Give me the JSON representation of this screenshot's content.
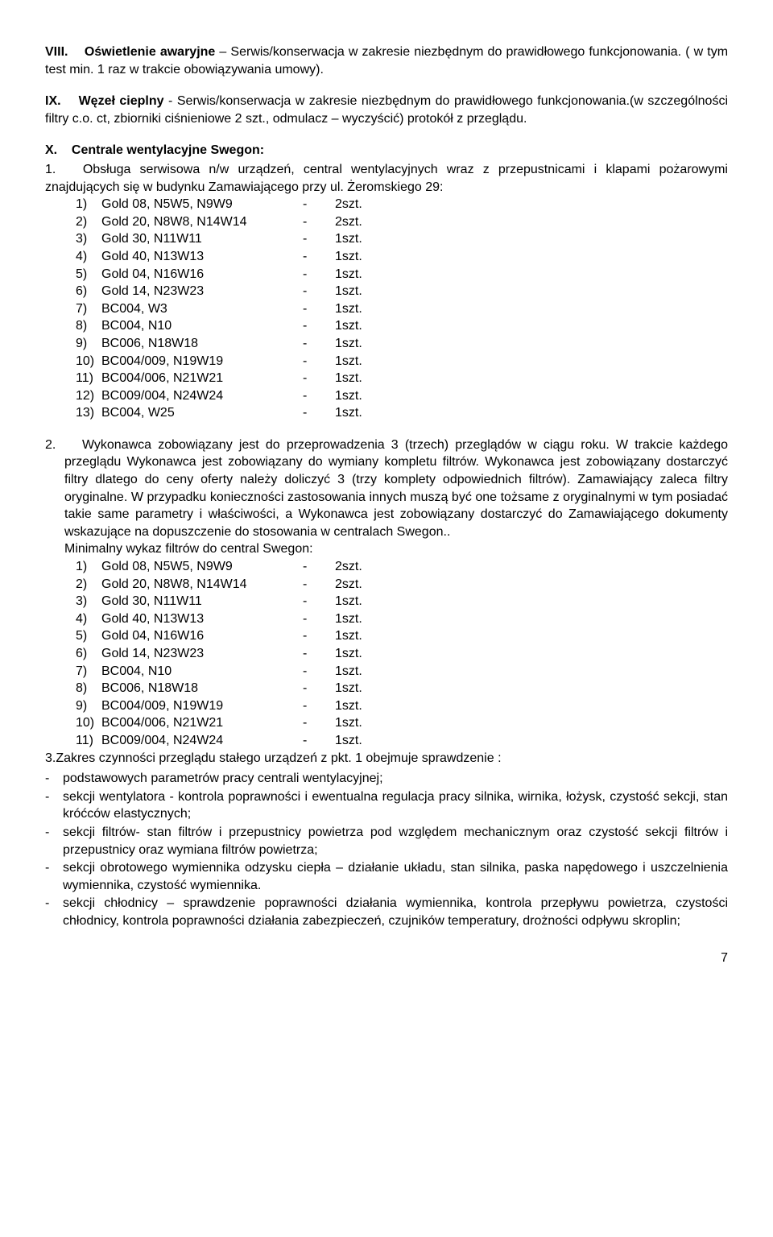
{
  "sec8": {
    "num": "VIII.",
    "title": "Oświetlenie awaryjne",
    "dash": " – ",
    "body": "Serwis/konserwacja w zakresie niezbędnym do prawidłowego funkcjonowania. ( w tym test min. 1 raz w trakcie obowiązywania umowy)."
  },
  "sec9": {
    "num": "IX.",
    "title": "Węzeł cieplny",
    "dash": " - ",
    "body": "Serwis/konserwacja w zakresie niezbędnym do prawidłowego funkcjonowania.(w szczególności filtry c.o. ct, zbiorniki ciśnieniowe 2 szt., odmulacz – wyczyścić) protokół z przeglądu."
  },
  "sec10": {
    "num": "X.",
    "title": "Centrale wentylacyjne Swegon:"
  },
  "p1": {
    "num": "1.",
    "text": "Obsługa serwisowa n/w urządzeń, central wentylacyjnych wraz z przepustnicami i klapami pożarowymi znajdujących się w budynku Zamawiającego przy ul. Żeromskiego 29:"
  },
  "list1": [
    {
      "n": "1)",
      "name": "Gold 08, N5W5, N9W9",
      "q": "2szt."
    },
    {
      "n": "2)",
      "name": "Gold 20, N8W8, N14W14",
      "q": "2szt."
    },
    {
      "n": "3)",
      "name": "Gold 30, N11W11",
      "q": "1szt."
    },
    {
      "n": "4)",
      "name": "Gold 40, N13W13",
      "q": "1szt."
    },
    {
      "n": "5)",
      "name": "Gold 04, N16W16",
      "q": "1szt."
    },
    {
      "n": "6)",
      "name": "Gold 14, N23W23",
      "q": "1szt."
    },
    {
      "n": "7)",
      "name": "BC004, W3",
      "q": "1szt."
    },
    {
      "n": "8)",
      "name": "BC004, N10",
      "q": "1szt."
    },
    {
      "n": "9)",
      "name": "BC006, N18W18",
      "q": "1szt."
    },
    {
      "n": "10)",
      "name": "BC004/009, N19W19",
      "q": "1szt."
    },
    {
      "n": "11)",
      "name": "BC004/006, N21W21",
      "q": "1szt."
    },
    {
      "n": "12)",
      "name": "BC009/004, N24W24",
      "q": "1szt."
    },
    {
      "n": "13)",
      "name": "BC004, W25",
      "q": "1szt."
    }
  ],
  "p2": {
    "num": "2.",
    "text": "Wykonawca zobowiązany jest do przeprowadzenia 3 (trzech) przeglądów w ciągu roku. W trakcie każdego przeglądu Wykonawca jest zobowiązany do wymiany kompletu filtrów. Wykonawca jest zobowiązany dostarczyć filtry dlatego do ceny oferty należy doliczyć 3 (trzy komplety odpowiednich filtrów). Zamawiający zaleca filtry oryginalne. W przypadku konieczności zastosowania innych muszą być one tożsame z oryginalnymi w tym posiadać takie same parametry i właściwości, a Wykonawca jest zobowiązany dostarczyć do Zamawiającego dokumenty wskazujące na dopuszczenie do stosowania w centralach Swegon.."
  },
  "p2b": "Minimalny wykaz filtrów do central Swegon:",
  "list2": [
    {
      "n": "1)",
      "name": "Gold 08, N5W5, N9W9",
      "q": "2szt."
    },
    {
      "n": "2)",
      "name": "Gold 20, N8W8, N14W14",
      "q": "2szt."
    },
    {
      "n": "3)",
      "name": "Gold 30, N11W11",
      "q": "1szt."
    },
    {
      "n": "4)",
      "name": "Gold 40, N13W13",
      "q": "1szt."
    },
    {
      "n": "5)",
      "name": "Gold 04, N16W16",
      "q": "1szt."
    },
    {
      "n": "6)",
      "name": "Gold 14, N23W23",
      "q": "1szt."
    },
    {
      "n": "7)",
      "name": "BC004, N10",
      "q": "1szt."
    },
    {
      "n": "8)",
      "name": "BC006, N18W18",
      "q": "1szt."
    },
    {
      "n": "9)",
      "name": "BC004/009, N19W19",
      "q": "1szt."
    },
    {
      "n": "10)",
      "name": "BC004/006, N21W21",
      "q": "1szt."
    },
    {
      "n": "11)",
      "name": "BC009/004, N24W24",
      "q": "1szt."
    }
  ],
  "p3": "3.Zakres czynności przeglądu stałego urządzeń z pkt. 1 obejmuje sprawdzenie :",
  "bullets": [
    "podstawowych parametrów pracy centrali wentylacyjnej;",
    "sekcji wentylatora - kontrola poprawności i ewentualna regulacja pracy silnika, wirnika, łożysk, czystość sekcji, stan króćców elastycznych;",
    "sekcji filtrów- stan filtrów i przepustnicy powietrza pod względem mechanicznym oraz czystość sekcji filtrów i przepustnicy oraz wymiana filtrów powietrza;",
    "sekcji obrotowego wymiennika odzysku ciepła – działanie układu, stan silnika, paska napędowego i uszczelnienia wymiennika, czystość wymiennika.",
    "sekcji chłodnicy – sprawdzenie poprawności działania wymiennika, kontrola przepływu powietrza, czystości chłodnicy, kontrola poprawności działania zabezpieczeń, czujników temperatury, drożności odpływu skroplin;"
  ],
  "pageNum": "7"
}
